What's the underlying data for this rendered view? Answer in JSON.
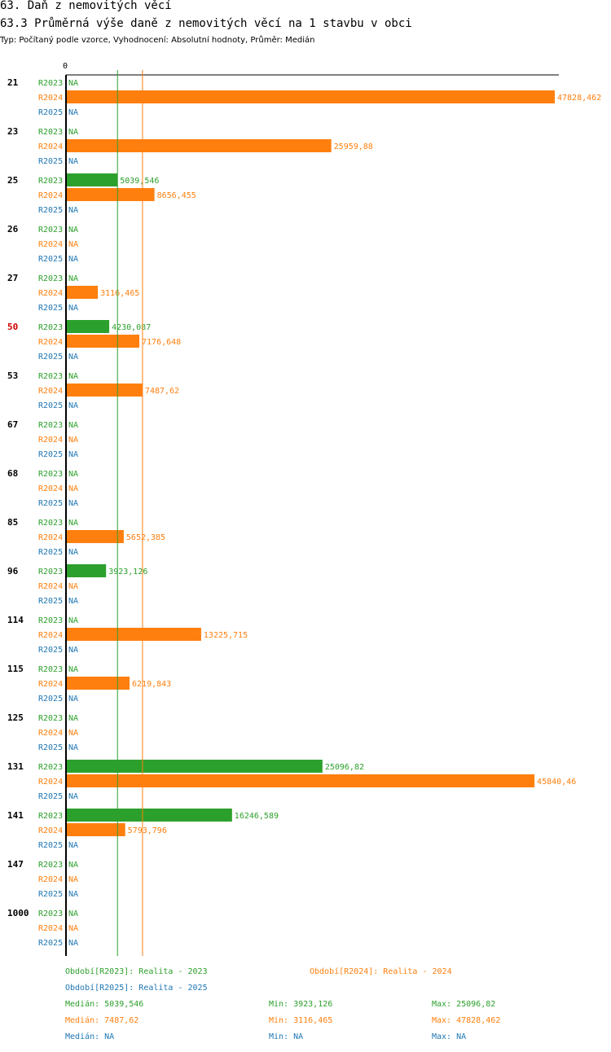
{
  "header": {
    "title": "63. Daň z nemovitých věcí",
    "subtitle": "63.3 Průměrná výše daně z nemovitých věcí na 1 stavbu v obci",
    "info": "Typ: Počítaný podle vzorce, Vyhodnocení: Absolutní hodnoty, Průměr: Medián"
  },
  "colors": {
    "R2023": "#2ca02c",
    "R2024": "#ff7f0e",
    "R2025": "#1f77b4",
    "highlight": "#cc0000",
    "axis": "#000000"
  },
  "chart_data": {
    "type": "bar",
    "orientation": "horizontal",
    "axis_zero_label": "0",
    "na_label": "NA",
    "xlim": [
      0,
      47828.462
    ],
    "series_names": [
      "R2023",
      "R2024",
      "R2025"
    ],
    "highlighted_category": "50",
    "categories": [
      {
        "label": "21",
        "values": {
          "R2023": null,
          "R2024": 47828.462,
          "R2025": null
        },
        "text": {
          "R2024": "47828,462"
        }
      },
      {
        "label": "23",
        "values": {
          "R2023": null,
          "R2024": 25959.88,
          "R2025": null
        },
        "text": {
          "R2024": "25959,88"
        }
      },
      {
        "label": "25",
        "values": {
          "R2023": 5039.546,
          "R2024": 8656.455,
          "R2025": null
        },
        "text": {
          "R2023": "5039,546",
          "R2024": "8656,455"
        }
      },
      {
        "label": "26",
        "values": {
          "R2023": null,
          "R2024": null,
          "R2025": null
        },
        "text": {}
      },
      {
        "label": "27",
        "values": {
          "R2023": null,
          "R2024": 3116.465,
          "R2025": null
        },
        "text": {
          "R2024": "3116,465"
        }
      },
      {
        "label": "50",
        "values": {
          "R2023": 4230.087,
          "R2024": 7176.648,
          "R2025": null
        },
        "text": {
          "R2023": "4230,087",
          "R2024": "7176,648"
        }
      },
      {
        "label": "53",
        "values": {
          "R2023": null,
          "R2024": 7487.62,
          "R2025": null
        },
        "text": {
          "R2024": "7487,62"
        }
      },
      {
        "label": "67",
        "values": {
          "R2023": null,
          "R2024": null,
          "R2025": null
        },
        "text": {}
      },
      {
        "label": "68",
        "values": {
          "R2023": null,
          "R2024": null,
          "R2025": null
        },
        "text": {}
      },
      {
        "label": "85",
        "values": {
          "R2023": null,
          "R2024": 5652.385,
          "R2025": null
        },
        "text": {
          "R2024": "5652,385"
        }
      },
      {
        "label": "96",
        "values": {
          "R2023": 3923.126,
          "R2024": null,
          "R2025": null
        },
        "text": {
          "R2023": "3923,126"
        }
      },
      {
        "label": "114",
        "values": {
          "R2023": null,
          "R2024": 13225.715,
          "R2025": null
        },
        "text": {
          "R2024": "13225,715"
        }
      },
      {
        "label": "115",
        "values": {
          "R2023": null,
          "R2024": 6219.843,
          "R2025": null
        },
        "text": {
          "R2024": "6219,843"
        }
      },
      {
        "label": "125",
        "values": {
          "R2023": null,
          "R2024": null,
          "R2025": null
        },
        "text": {}
      },
      {
        "label": "131",
        "values": {
          "R2023": 25096.82,
          "R2024": 45840.46,
          "R2025": null
        },
        "text": {
          "R2023": "25096,82",
          "R2024": "45840,46"
        }
      },
      {
        "label": "141",
        "values": {
          "R2023": 16246.589,
          "R2024": 5793.796,
          "R2025": null
        },
        "text": {
          "R2023": "16246,589",
          "R2024": "5793,796"
        }
      },
      {
        "label": "147",
        "values": {
          "R2023": null,
          "R2024": null,
          "R2025": null
        },
        "text": {}
      },
      {
        "label": "1000",
        "values": {
          "R2023": null,
          "R2024": null,
          "R2025": null
        },
        "text": {}
      }
    ],
    "reference_lines": [
      {
        "series": "R2023",
        "value": 5039.546
      },
      {
        "series": "R2024",
        "value": 7487.62
      }
    ]
  },
  "legend": {
    "periods": {
      "R2023": "Období[R2023]: Realita - 2023",
      "R2024": "Období[R2024]: Realita - 2024",
      "R2025": "Období[R2025]: Realita - 2025"
    },
    "stats": [
      {
        "series": "R2023",
        "median": "Medián: 5039,546",
        "min": "Min: 3923,126",
        "max": "Max: 25096,82"
      },
      {
        "series": "R2024",
        "median": "Medián: 7487,62",
        "min": "Min: 3116,465",
        "max": "Max: 47828,462"
      },
      {
        "series": "R2025",
        "median": "Medián: NA",
        "min": "Min: NA",
        "max": "Max: NA"
      }
    ]
  }
}
